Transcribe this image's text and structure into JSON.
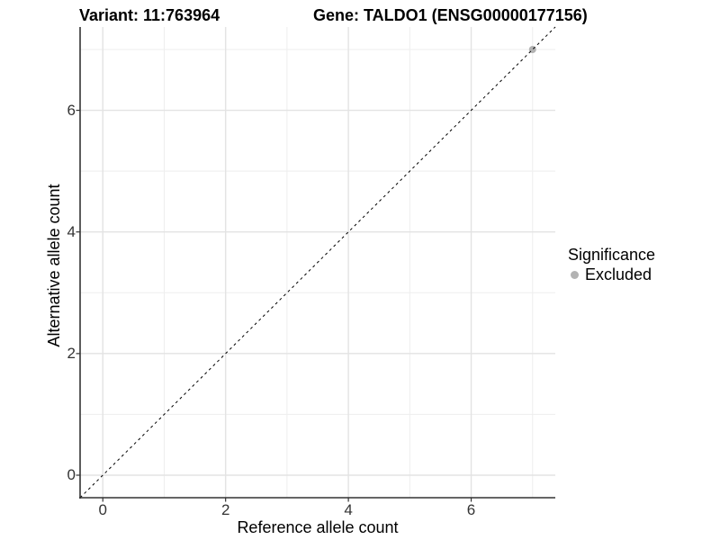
{
  "chart_data": {
    "type": "scatter",
    "titles": {
      "left": "Variant: 11:763964",
      "right": "Gene: TALDO1 (ENSG00000177156)"
    },
    "xlabel": "Reference allele count",
    "ylabel": "Alternative allele count",
    "xlim": [
      -0.37,
      7.37
    ],
    "ylim": [
      -0.37,
      7.37
    ],
    "x_major_ticks": [
      0,
      2,
      4,
      6
    ],
    "x_tick_labels": [
      "0",
      "2",
      "4",
      "6"
    ],
    "y_major_ticks": [
      0,
      2,
      4,
      6
    ],
    "y_tick_labels": [
      "0",
      "2",
      "4",
      "6"
    ],
    "x_minor_ticks": [
      1,
      3,
      5,
      7
    ],
    "y_minor_ticks": [
      1,
      3,
      5,
      7
    ],
    "grid": "major+minor",
    "reference_line": {
      "kind": "identity",
      "slope": 1,
      "intercept": 0,
      "style": "dashed",
      "color": "#000000"
    },
    "series": [
      {
        "name": "Excluded",
        "marker": "circle",
        "color": "#b3b3b3",
        "points": [
          {
            "x": 7,
            "y": 7
          }
        ]
      }
    ],
    "legend": {
      "title": "Significance",
      "position": "right",
      "entries": [
        {
          "label": "Excluded",
          "color": "#b3b3b3"
        }
      ]
    },
    "colors": {
      "background": "#ffffff",
      "grid_major": "#e3e3e3",
      "grid_minor": "#eeeeee",
      "axis_line": "#333333",
      "tick_text": "#333333",
      "title_text": "#000000",
      "point": "#b3b3b3"
    }
  }
}
